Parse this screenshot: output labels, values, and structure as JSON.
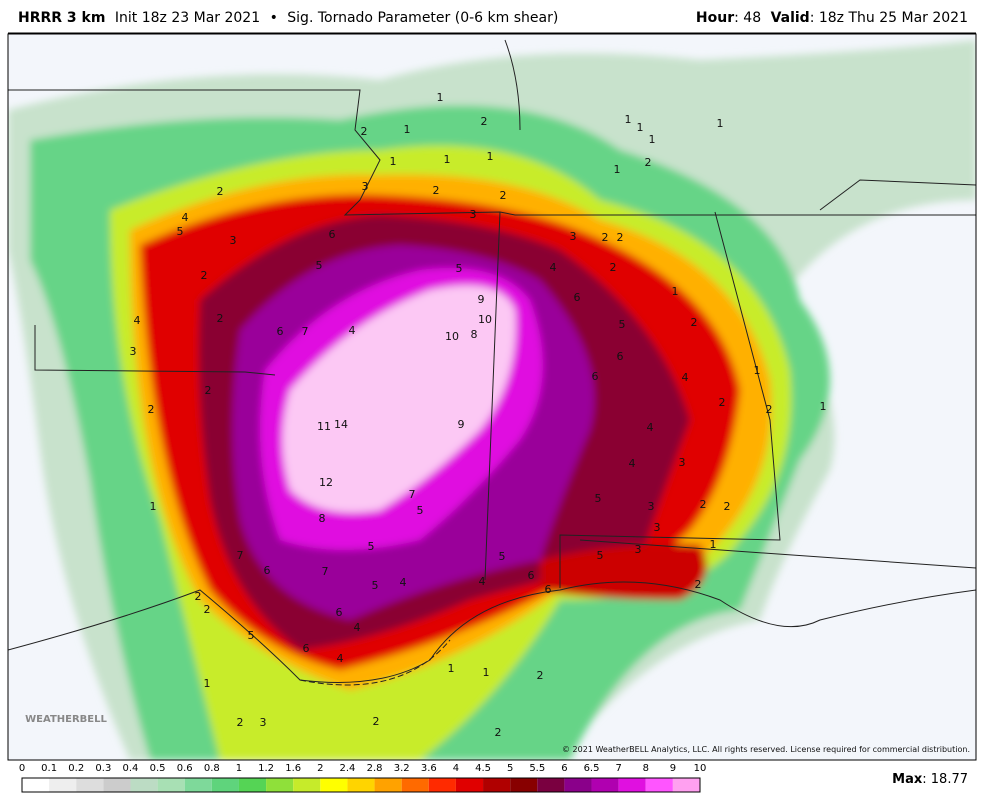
{
  "header": {
    "model": "HRRR 3 km",
    "init": "Init 18z 23 Mar 2021",
    "separator": "•",
    "parameter": "Sig. Tornado Parameter (0-6 km shear)",
    "hour_label": "Hour",
    "hour_value": ": 48",
    "valid_label": "Valid",
    "valid_value": ": 18z Thu 25 Mar 2021"
  },
  "logo": "WEATHERBELL",
  "copyright": "© 2021 WeatherBELL Analytics, LLC. All rights reserved. License required for commercial distribution.",
  "colorbar": {
    "ticks": [
      0,
      0.1,
      0.2,
      0.3,
      0.4,
      0.5,
      0.6,
      0.8,
      1,
      1.2,
      1.6,
      2,
      2.4,
      2.8,
      3.2,
      3.6,
      4,
      4.5,
      5,
      5.5,
      6,
      6.5,
      7,
      8,
      9,
      10
    ],
    "colors": [
      "#ffffff",
      "#eeeeee",
      "#dddddd",
      "#cccccc",
      "#bcdcc4",
      "#a8e0b4",
      "#7ed99a",
      "#5fd47c",
      "#55d455",
      "#8fe03a",
      "#c6eb2a",
      "#ffff00",
      "#ffd400",
      "#ffa200",
      "#ff6a00",
      "#ff2a00",
      "#e00000",
      "#b00000",
      "#880000",
      "#7a0040",
      "#8a008a",
      "#b000b0",
      "#e010e0",
      "#ff55ff",
      "#ffa0f0"
    ]
  },
  "max_label": "Max",
  "max_value": ": 18.77",
  "map_labels": [
    "1",
    "1",
    "2",
    "1",
    "1",
    "1",
    "1",
    "2",
    "1",
    "1",
    "1",
    "1",
    "2",
    "2",
    "3",
    "2",
    "2",
    "3",
    "4",
    "5",
    "3",
    "6",
    "5",
    "5",
    "4",
    "2",
    "3",
    "2",
    "2",
    "2",
    "6",
    "9",
    "10",
    "10",
    "8",
    "4",
    "7",
    "6",
    "5",
    "1",
    "2",
    "4",
    "3",
    "2",
    "6",
    "6",
    "4",
    "1",
    "2",
    "2",
    "2",
    "2",
    "1",
    "11",
    "14",
    "9",
    "4",
    "4",
    "3",
    "12",
    "7",
    "5",
    "5",
    "3",
    "2",
    "2",
    "1",
    "8",
    "3",
    "5",
    "1",
    "7",
    "6",
    "7",
    "5",
    "5",
    "3",
    "6",
    "6",
    "5",
    "4",
    "4",
    "2",
    "2",
    "6",
    "4",
    "5",
    "6",
    "4",
    "2",
    "1",
    "1",
    "2",
    "1",
    "2",
    "3",
    "2",
    "2"
  ]
}
